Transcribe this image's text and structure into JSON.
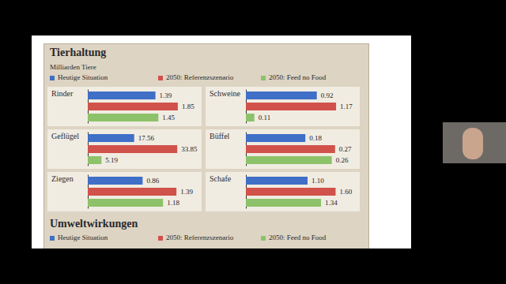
{
  "header": {
    "title": "Tierhaltung",
    "subtitle": "Milliarden Tiere"
  },
  "chart_data": [
    {
      "type": "bar",
      "title": "Rinder",
      "orientation": "horizontal",
      "data_labels": true,
      "tick_labels": false,
      "xlim": [
        0,
        1.9
      ],
      "series": [
        {
          "name": "Heutige Situation",
          "color": "#3f6fc6",
          "values": [
            1.39
          ]
        },
        {
          "name": "2050: Referenzszenario",
          "color": "#d0524a",
          "values": [
            1.85
          ]
        },
        {
          "name": "2050: Feed no Food",
          "color": "#8dc26a",
          "values": [
            1.45
          ]
        }
      ]
    },
    {
      "type": "bar",
      "title": "Schweine",
      "orientation": "horizontal",
      "data_labels": true,
      "tick_labels": false,
      "xlim": [
        0,
        1.2
      ],
      "series": [
        {
          "name": "Heutige Situation",
          "color": "#3f6fc6",
          "values": [
            0.92
          ]
        },
        {
          "name": "2050: Referenzszenario",
          "color": "#d0524a",
          "values": [
            1.17
          ]
        },
        {
          "name": "2050: Feed no Food",
          "color": "#8dc26a",
          "values": [
            0.11
          ]
        }
      ]
    },
    {
      "type": "bar",
      "title": "Geflügel",
      "orientation": "horizontal",
      "data_labels": true,
      "tick_labels": false,
      "xlim": [
        0,
        35
      ],
      "series": [
        {
          "name": "Heutige Situation",
          "color": "#3f6fc6",
          "values": [
            17.56
          ]
        },
        {
          "name": "2050: Referenzszenario",
          "color": "#d0524a",
          "values": [
            33.85
          ]
        },
        {
          "name": "2050: Feed no Food",
          "color": "#8dc26a",
          "values": [
            5.19
          ]
        }
      ]
    },
    {
      "type": "bar",
      "title": "Büffel",
      "orientation": "horizontal",
      "data_labels": true,
      "tick_labels": false,
      "xlim": [
        0,
        0.28
      ],
      "series": [
        {
          "name": "Heutige Situation",
          "color": "#3f6fc6",
          "values": [
            0.18
          ]
        },
        {
          "name": "2050: Referenzszenario",
          "color": "#d0524a",
          "values": [
            0.27
          ]
        },
        {
          "name": "2050: Feed no Food",
          "color": "#8dc26a",
          "values": [
            0.26
          ]
        }
      ]
    },
    {
      "type": "bar",
      "title": "Ziegen",
      "orientation": "horizontal",
      "data_labels": true,
      "tick_labels": false,
      "xlim": [
        0,
        1.45
      ],
      "series": [
        {
          "name": "Heutige Situation",
          "color": "#3f6fc6",
          "values": [
            0.86
          ]
        },
        {
          "name": "2050: Referenzszenario",
          "color": "#d0524a",
          "values": [
            1.39
          ]
        },
        {
          "name": "2050: Feed no Food",
          "color": "#8dc26a",
          "values": [
            1.18
          ]
        }
      ]
    },
    {
      "type": "bar",
      "title": "Schafe",
      "orientation": "horizontal",
      "data_labels": true,
      "tick_labels": false,
      "xlim": [
        0,
        1.65
      ],
      "series": [
        {
          "name": "Heutige Situation",
          "color": "#3f6fc6",
          "values": [
            1.1
          ],
          "value_labels": [
            "1.10"
          ]
        },
        {
          "name": "2050: Referenzszenario",
          "color": "#d0524a",
          "values": [
            1.6
          ],
          "value_labels": [
            "1.60"
          ]
        },
        {
          "name": "2050: Feed no Food",
          "color": "#8dc26a",
          "values": [
            1.34
          ]
        }
      ]
    }
  ],
  "footer": {
    "title": "Umweltwirkungen"
  }
}
